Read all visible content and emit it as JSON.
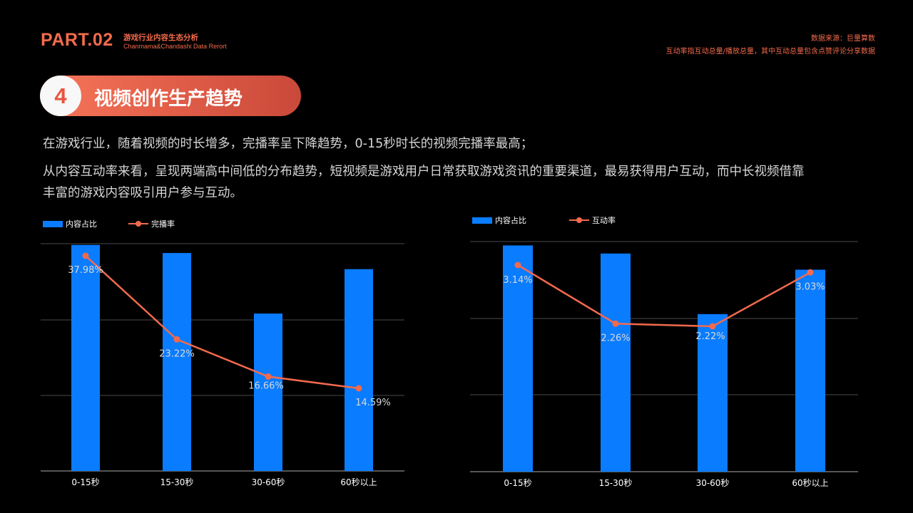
{
  "header": {
    "part": "PART.02",
    "subtitle": "游戏行业内容生态分析",
    "subtitle_en": "Chanmama&Chandashi Data Rerort",
    "source": "数据来源：巨量算数",
    "note": "互动率指互动总量/播放总量，其中互动总量包含点赞评论分享数据"
  },
  "section": {
    "number": "4",
    "title": "视频创作生产趋势"
  },
  "paragraphs": [
    "在游戏行业，随着视频的时长增多，完播率呈下降趋势，0-15秒时长的视频完播率最高；",
    "从内容互动率来看，呈现两端高中间低的分布趋势，短视频是游戏用户日常获取游戏资讯的重要渠道，最易获得用户互动，而中长视频借靠",
    "丰富的游戏内容吸引用户参与互动。"
  ],
  "colors": {
    "bar": "#0A7CFF",
    "line": "#F26A4E",
    "accent": "#F46B4C",
    "grid": "#4A4A4A"
  },
  "chart_data": [
    {
      "type": "bar",
      "categories": [
        "0-15秒",
        "15-30秒",
        "30-60秒",
        "60秒以上"
      ],
      "legend": {
        "bar": "内容占比",
        "line": "完播率"
      },
      "series": [
        {
          "name": "内容占比",
          "type": "bar",
          "values": [
            28,
            27,
            19.5,
            25
          ]
        },
        {
          "name": "完播率",
          "type": "line",
          "values": [
            37.98,
            23.22,
            16.66,
            14.59
          ],
          "labels": [
            "37.98%",
            "23.22%",
            "16.66%",
            "14.59%"
          ]
        }
      ],
      "grid": true
    },
    {
      "type": "bar",
      "categories": [
        "0-15秒",
        "15-30秒",
        "30-60秒",
        "60秒以上"
      ],
      "legend": {
        "bar": "内容占比",
        "line": "互动率"
      },
      "series": [
        {
          "name": "内容占比",
          "type": "bar",
          "values": [
            28,
            27,
            19.5,
            25
          ]
        },
        {
          "name": "互动率",
          "type": "line",
          "values": [
            3.14,
            2.26,
            2.22,
            3.03
          ],
          "labels": [
            "3.14%",
            "2.26%",
            "2.22%",
            "3.03%"
          ]
        }
      ],
      "grid": true
    }
  ]
}
